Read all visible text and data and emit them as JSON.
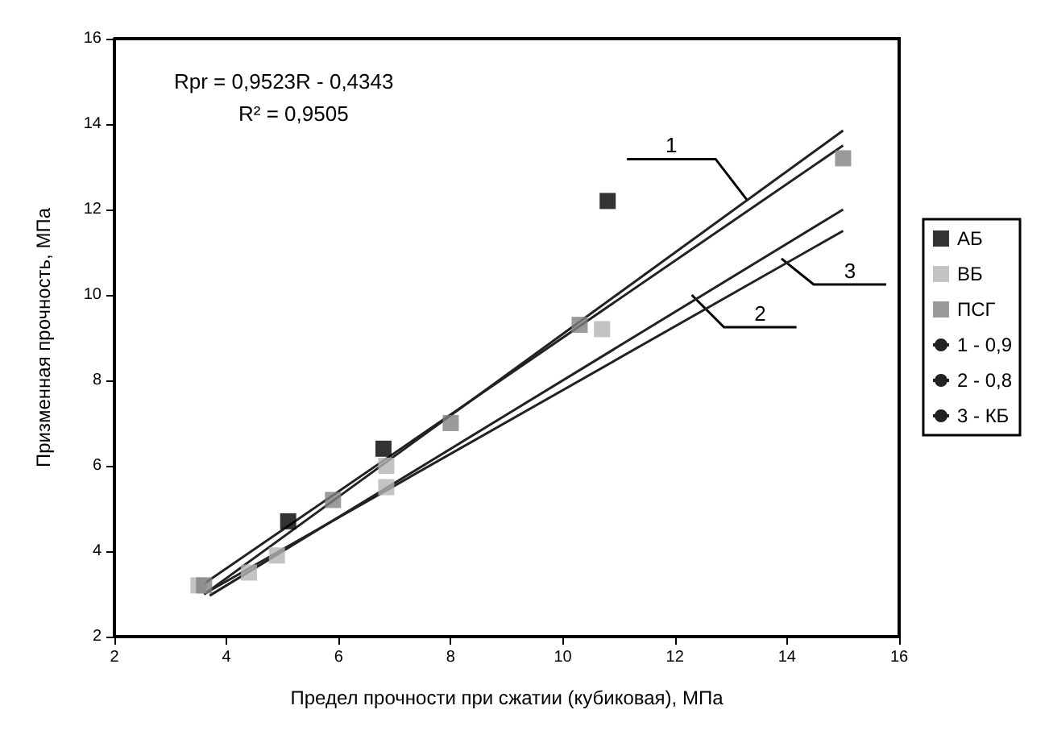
{
  "chart_data": {
    "type": "scatter",
    "xlabel": "Предел прочности при сжатии (кубиковая), МПа",
    "ylabel": "Призменная прочность, МПа",
    "xlim": [
      2,
      16
    ],
    "xticks": [
      2,
      4,
      6,
      8,
      10,
      12,
      14,
      16
    ],
    "ylim": [
      2,
      16
    ],
    "yticks": [
      2,
      4,
      6,
      8,
      10,
      12,
      14,
      16
    ],
    "grid": false,
    "legend": "right",
    "series": [
      {
        "name": "АБ",
        "marker": "square",
        "color": "#000000",
        "x": [
          5.1,
          6.8,
          10.8
        ],
        "values": [
          4.7,
          6.4,
          12.2
        ]
      },
      {
        "name": "ВБ",
        "marker": "square",
        "color": "#b4b4b4",
        "x": [
          3.5,
          4.4,
          4.9,
          6.85,
          6.85,
          10.7
        ],
        "values": [
          3.2,
          3.5,
          3.9,
          5.5,
          6.0,
          9.2
        ]
      },
      {
        "name": "ПСГ",
        "marker": "square",
        "color": "#828282",
        "x": [
          3.6,
          5.9,
          8.0,
          10.3,
          15.0
        ],
        "values": [
          3.2,
          5.2,
          7.0,
          9.3,
          13.2
        ]
      },
      {
        "type": "line",
        "marker": "none",
        "color": "#222222",
        "x": [
          3.6,
          15.0
        ],
        "values": [
          2.99,
          13.85
        ]
      },
      {
        "name": "1 - 0,9",
        "type": "line",
        "marker": "none",
        "color": "#222222",
        "x": [
          3.6,
          15.0
        ],
        "values": [
          3.24,
          13.5
        ]
      },
      {
        "name": "2 - 0,8",
        "type": "line",
        "marker": "none",
        "color": "#222222",
        "x": [
          3.7,
          15.0
        ],
        "values": [
          2.96,
          12.0
        ]
      },
      {
        "name": "3 - КБ",
        "type": "line",
        "marker": "none",
        "color": "#222222",
        "x": [
          3.6,
          15.0
        ],
        "values": [
          3.0,
          11.5
        ]
      }
    ],
    "annotations": [
      "Rpr = 0,9523R - 0,4343",
      "R² = 0,9505",
      {
        "text": "1",
        "x": 13.3,
        "y": 12.2
      },
      {
        "text": "2",
        "x": 12.3,
        "y": 10.0
      },
      {
        "text": "3",
        "x": 13.9,
        "y": 10.85
      }
    ]
  }
}
